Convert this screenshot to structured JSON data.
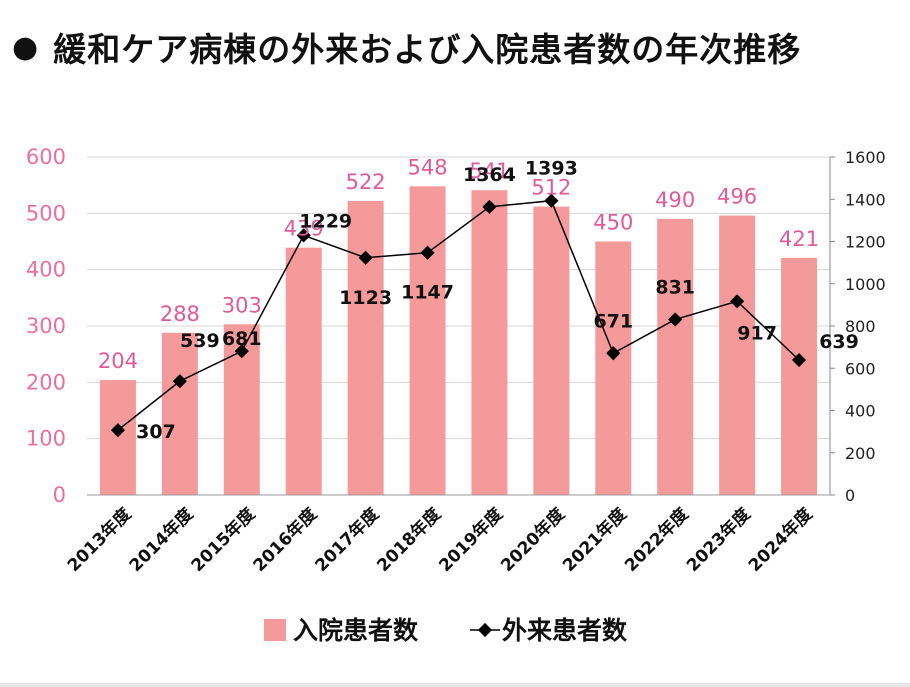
{
  "title": "緩和ケア病棟の外来および入院患者数の年次推移",
  "bullet": "●",
  "colors": {
    "bar": "#f59a9a",
    "line": "#000000",
    "left_axis": "#ea6fa0",
    "right_axis": "#222222",
    "bar_label": "#e05a9a",
    "grid": "#d6d6d6"
  },
  "chart_data": {
    "type": "bar+line",
    "categories": [
      "2013年度",
      "2014年度",
      "2015年度",
      "2016年度",
      "2017年度",
      "2018年度",
      "2019年度",
      "2020年度",
      "2021年度",
      "2022年度",
      "2023年度",
      "2024年度"
    ],
    "series": [
      {
        "name": "入院患者数",
        "type": "bar",
        "axis": "left",
        "values": [
          204,
          288,
          303,
          439,
          522,
          548,
          541,
          512,
          450,
          490,
          496,
          421
        ]
      },
      {
        "name": "外来患者数",
        "type": "line",
        "axis": "right",
        "values": [
          307,
          539,
          681,
          1229,
          1123,
          1147,
          1364,
          1393,
          671,
          831,
          917,
          639
        ]
      }
    ],
    "left_axis": {
      "ylim": [
        0,
        600
      ],
      "ticks": [
        "0",
        "100",
        "200",
        "300",
        "400",
        "500",
        "600"
      ]
    },
    "right_axis": {
      "ylim": [
        0,
        1600
      ],
      "ticks": [
        "0",
        "200",
        "400",
        "600",
        "800",
        "1000",
        "1200",
        "1400",
        "1600"
      ]
    },
    "legend": [
      "入院患者数",
      "外来患者数"
    ],
    "legend_position": "bottom",
    "grid": true
  }
}
